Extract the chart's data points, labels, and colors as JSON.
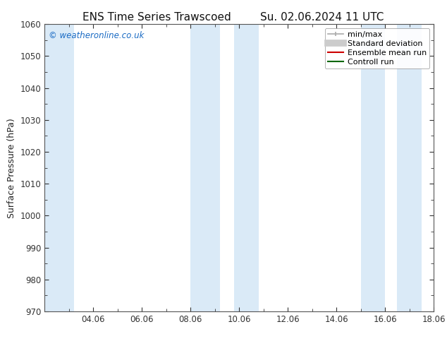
{
  "title_left": "ENS Time Series Trawscoed",
  "title_right": "Su. 02.06.2024 11 UTC",
  "ylabel": "Surface Pressure (hPa)",
  "ylim": [
    970,
    1060
  ],
  "yticks": [
    970,
    980,
    990,
    1000,
    1010,
    1020,
    1030,
    1040,
    1050,
    1060
  ],
  "xlim": [
    0,
    16
  ],
  "xtick_labels": [
    "04.06",
    "06.06",
    "08.06",
    "10.06",
    "12.06",
    "14.06",
    "16.06",
    "18.06"
  ],
  "xtick_positions": [
    2,
    4,
    6,
    8,
    10,
    12,
    14,
    16
  ],
  "background_color": "#ffffff",
  "plot_bg_color": "#ffffff",
  "shaded_regions": [
    {
      "x_start": 0.0,
      "x_end": 1.2
    },
    {
      "x_start": 6.0,
      "x_end": 7.2
    },
    {
      "x_start": 7.8,
      "x_end": 8.8
    },
    {
      "x_start": 13.0,
      "x_end": 14.0
    },
    {
      "x_start": 14.5,
      "x_end": 15.5
    }
  ],
  "shade_color": "#daeaf7",
  "watermark_text": "© weatheronline.co.uk",
  "watermark_color": "#1a6bc4",
  "legend_items": [
    {
      "label": "min/max",
      "color": "#aaaaaa",
      "lw": 1.2,
      "ltype": "line_with_bars"
    },
    {
      "label": "Standard deviation",
      "color": "#cccccc",
      "lw": 7,
      "ltype": "line"
    },
    {
      "label": "Ensemble mean run",
      "color": "#cc0000",
      "lw": 1.5,
      "ltype": "line"
    },
    {
      "label": "Controll run",
      "color": "#006600",
      "lw": 1.5,
      "ltype": "line"
    }
  ],
  "title_fontsize": 11,
  "axis_label_fontsize": 9,
  "tick_fontsize": 8.5,
  "legend_fontsize": 8,
  "border_color": "#555555",
  "tick_color": "#333333",
  "minor_tick_interval": 1
}
